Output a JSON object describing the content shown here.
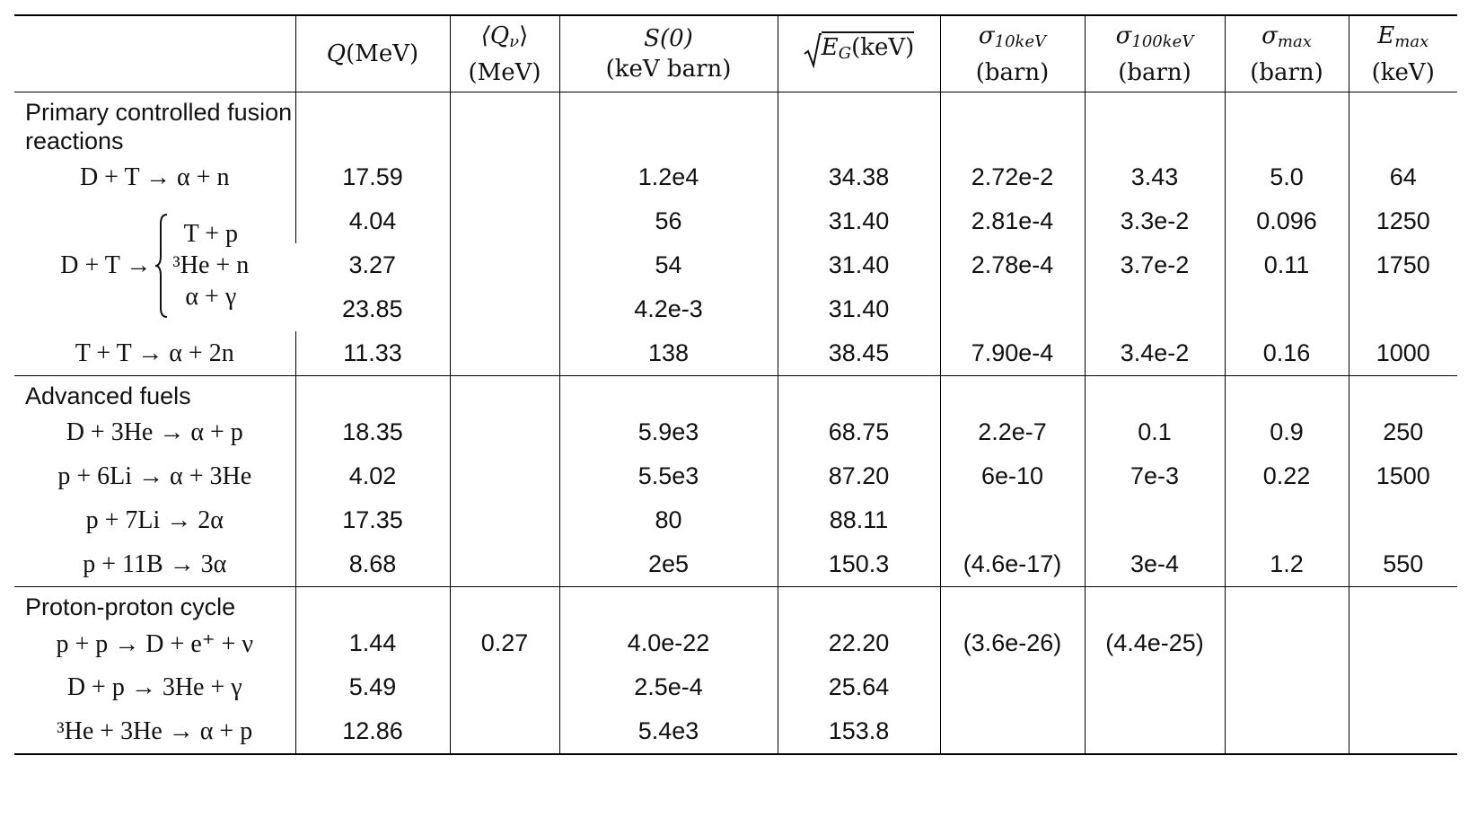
{
  "columns": [
    {
      "symbol": "Q",
      "unit": "(MeV)"
    },
    {
      "symbol": "⟨Q",
      "subscript": "ν",
      "symbol_end": "⟩",
      "unit": "(MeV)"
    },
    {
      "symbol": "S(0)",
      "unit": "(keV barn)"
    },
    {
      "symbol": "E",
      "subscript": "G",
      "unit": "(keV)"
    },
    {
      "symbol": "σ",
      "subscript": "10keV",
      "unit": "(barn)"
    },
    {
      "symbol": "σ",
      "subscript": "100keV",
      "unit": "(barn)"
    },
    {
      "symbol": "σ",
      "subscript": "max",
      "unit": "(barn)"
    },
    {
      "symbol": "E",
      "subscript": "max",
      "unit": "(keV)"
    }
  ],
  "sections": [
    {
      "title": "Primary controlled fusion reactions",
      "rows": [
        {
          "reaction": "D + T → α + n",
          "values": [
            "17.59",
            null,
            "1.2e4",
            "34.38",
            "2.72e-2",
            "3.43",
            "5.0",
            "64"
          ]
        },
        {
          "reaction": "D + T →",
          "branches": [
            "T + p",
            "³He + n",
            "α + γ"
          ],
          "branch_values": [
            [
              "4.04",
              null,
              "56",
              "31.40",
              "2.81e-4",
              "3.3e-2",
              "0.096",
              "1250"
            ],
            [
              "3.27",
              null,
              "54",
              "31.40",
              "2.78e-4",
              "3.7e-2",
              "0.11",
              "1750"
            ],
            [
              "23.85",
              null,
              "4.2e-3",
              "31.40",
              null,
              null,
              null,
              null
            ]
          ]
        },
        {
          "reaction": "T + T → α + 2n",
          "values": [
            "11.33",
            null,
            "138",
            "38.45",
            "7.90e-4",
            "3.4e-2",
            "0.16",
            "1000"
          ]
        }
      ]
    },
    {
      "title": "Advanced fuels",
      "rows": [
        {
          "reaction": "D + 3He → α + p",
          "values": [
            "18.35",
            null,
            "5.9e3",
            "68.75",
            "2.2e-7",
            "0.1",
            "0.9",
            "250"
          ]
        },
        {
          "reaction": "p + 6Li → α + 3He",
          "values": [
            "4.02",
            null,
            "5.5e3",
            "87.20",
            "6e-10",
            "7e-3",
            "0.22",
            "1500"
          ]
        },
        {
          "reaction": "p + 7Li → 2α",
          "values": [
            "17.35",
            null,
            "80",
            "88.11",
            null,
            null,
            null,
            null
          ]
        },
        {
          "reaction": "p + 11B → 3α",
          "values": [
            "8.68",
            null,
            "2e5",
            "150.3",
            "(4.6e-17)",
            "3e-4",
            "1.2",
            "550"
          ]
        }
      ]
    },
    {
      "title": "Proton-proton cycle",
      "rows": [
        {
          "reaction": "p + p → D + e⁺ + ν",
          "values": [
            "1.44",
            "0.27",
            "4.0e-22",
            "22.20",
            "(3.6e-26)",
            "(4.4e-25)",
            null,
            null
          ]
        },
        {
          "reaction": "D + p → 3He + γ",
          "values": [
            "5.49",
            null,
            "2.5e-4",
            "25.64",
            null,
            null,
            null,
            null
          ]
        },
        {
          "reaction": "³He + 3He → α + p",
          "values": [
            "12.86",
            null,
            "5.4e3",
            "153.8",
            null,
            null,
            null,
            null
          ]
        }
      ]
    }
  ]
}
